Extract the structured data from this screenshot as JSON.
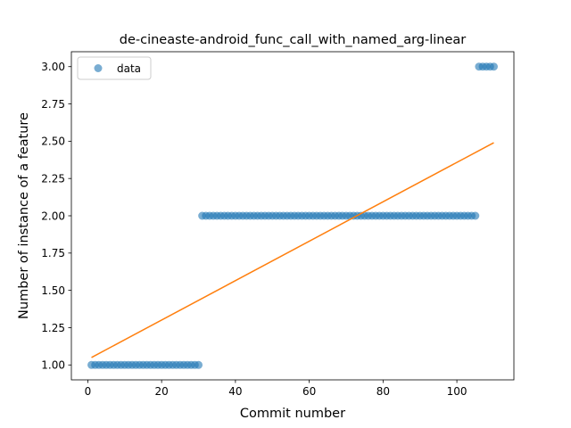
{
  "chart_data": {
    "type": "scatter",
    "title": "de-cineaste-android_func_call_with_named_arg-linear",
    "xlabel": "Commit number",
    "ylabel": "Number of instance of a feature",
    "xlim": [
      -4.45,
      115.45
    ],
    "ylim": [
      0.9,
      3.1
    ],
    "xticks": [
      0,
      20,
      40,
      60,
      80,
      100
    ],
    "yticks": [
      1.0,
      1.25,
      1.5,
      1.75,
      2.0,
      2.25,
      2.5,
      2.75,
      3.0
    ],
    "xtick_labels": [
      "0",
      "20",
      "40",
      "60",
      "80",
      "100"
    ],
    "ytick_labels": [
      "1.00",
      "1.25",
      "1.50",
      "1.75",
      "2.00",
      "2.25",
      "2.50",
      "2.75",
      "3.00"
    ],
    "legend_position": "top-left",
    "grid": false,
    "series": [
      {
        "name": "data",
        "kind": "scatter",
        "color": "#1f77b4",
        "segments": [
          {
            "x_start": 1,
            "x_end": 30,
            "y": 1
          },
          {
            "x_start": 31,
            "x_end": 105,
            "y": 2
          },
          {
            "x_start": 106,
            "x_end": 110,
            "y": 3
          }
        ]
      },
      {
        "kind": "line",
        "color": "#ff7f0e",
        "x": [
          1,
          110
        ],
        "y": [
          1.05,
          2.49
        ]
      }
    ]
  }
}
